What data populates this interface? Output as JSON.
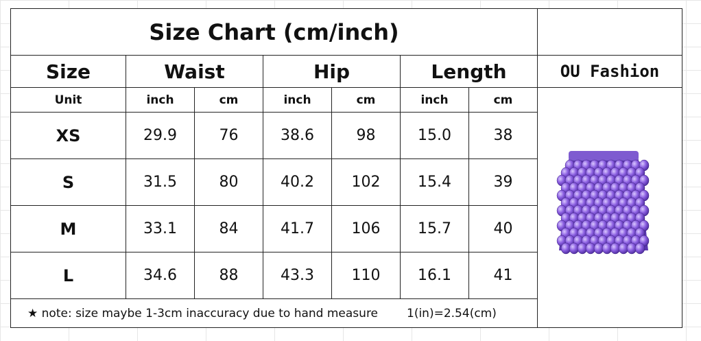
{
  "header": {
    "title": "Size Chart (cm/inch)",
    "brand": "OU Fashion"
  },
  "table": {
    "groups": [
      "Size",
      "Waist",
      "Hip",
      "Length"
    ],
    "units": [
      "Unit",
      "inch",
      "cm",
      "inch",
      "cm",
      "inch",
      "cm"
    ],
    "rows": [
      [
        "XS",
        "29.9",
        "76",
        "38.6",
        "98",
        "15.0",
        "38"
      ],
      [
        "S",
        "31.5",
        "80",
        "40.2",
        "102",
        "15.4",
        "39"
      ],
      [
        "M",
        "33.1",
        "84",
        "41.7",
        "106",
        "15.7",
        "40"
      ],
      [
        "L",
        "34.6",
        "88",
        "43.3",
        "110",
        "16.1",
        "41"
      ]
    ]
  },
  "footer": {
    "note": "★ note: size maybe 1-3cm inaccuracy due to hand measure",
    "conversion": "1(in)=2.54(cm)"
  }
}
